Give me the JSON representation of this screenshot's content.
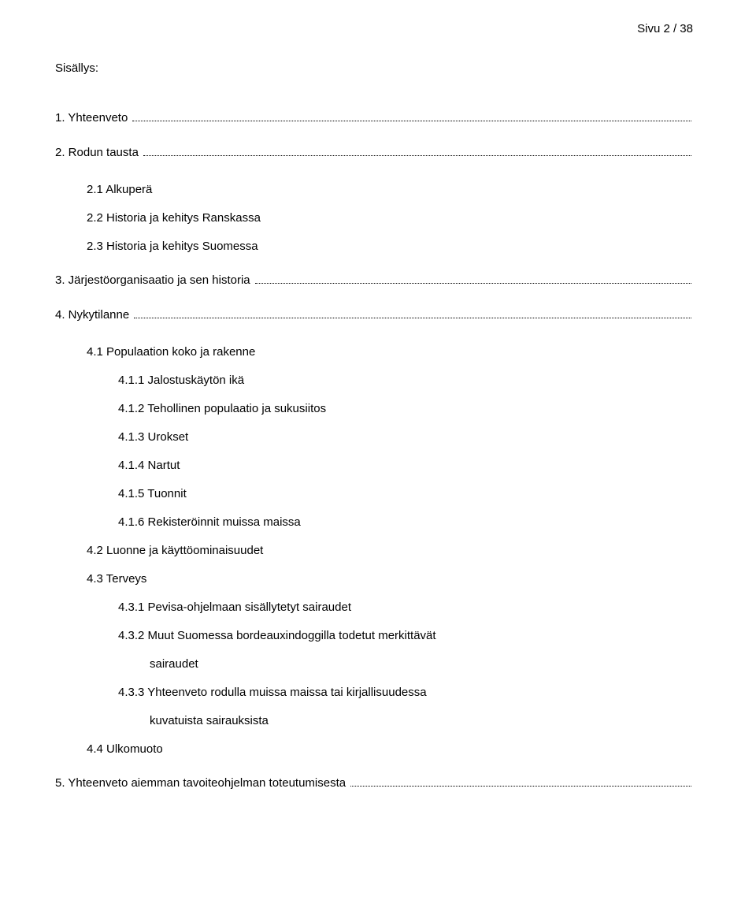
{
  "page_number": "Sivu 2 / 38",
  "heading": "Sisällys:",
  "toc": [
    {
      "label": "1. Yhteenveto",
      "level": 0,
      "dots": true
    },
    {
      "label": "2. Rodun tausta",
      "level": 0,
      "dots": true
    },
    {
      "label": "2.1 Alkuperä",
      "level": 1,
      "dots": false
    },
    {
      "label": "2.2 Historia ja kehitys Ranskassa",
      "level": 1,
      "dots": false
    },
    {
      "label": "2.3 Historia ja kehitys Suomessa",
      "level": 1,
      "dots": false
    },
    {
      "label": "3. Järjestöorganisaatio ja sen historia",
      "level": 0,
      "dots": true
    },
    {
      "label": "4. Nykytilanne",
      "level": 0,
      "dots": true
    },
    {
      "label": "4.1 Populaation koko ja rakenne",
      "level": 1,
      "dots": false
    },
    {
      "label": "4.1.1 Jalostuskäytön ikä",
      "level": 2,
      "dots": false
    },
    {
      "label": "4.1.2 Tehollinen populaatio ja sukusiitos",
      "level": 2,
      "dots": false
    },
    {
      "label": "4.1.3 Urokset",
      "level": 2,
      "dots": false
    },
    {
      "label": "4.1.4 Nartut",
      "level": 2,
      "dots": false
    },
    {
      "label": "4.1.5 Tuonnit",
      "level": 2,
      "dots": false
    },
    {
      "label": "4.1.6 Rekisteröinnit muissa maissa",
      "level": 2,
      "dots": false
    },
    {
      "label": "4.2 Luonne ja käyttöominaisuudet",
      "level": 1,
      "dots": false
    },
    {
      "label": "4.3 Terveys",
      "level": 1,
      "dots": false
    },
    {
      "label": "4.3.1 Pevisa-ohjelmaan sisällytetyt sairaudet",
      "level": 2,
      "dots": false
    },
    {
      "label": "4.3.2 Muut Suomessa bordeauxindoggilla todetut merkittävät",
      "level": 2,
      "dots": false
    },
    {
      "label": "sairaudet",
      "level": 3,
      "dots": false
    },
    {
      "label": "4.3.3 Yhteenveto rodulla muissa maissa tai kirjallisuudessa",
      "level": 2,
      "dots": false
    },
    {
      "label": "kuvatuista sairauksista",
      "level": 3,
      "dots": false
    },
    {
      "label": "4.4 Ulkomuoto",
      "level": 1,
      "dots": false
    },
    {
      "label": "5. Yhteenveto aiemman tavoiteohjelman toteutumisesta",
      "level": 0,
      "dots": true
    }
  ],
  "style": {
    "font_family": "Arial",
    "text_color": "#000000",
    "background_color": "#ffffff",
    "base_fontsize": 15
  }
}
